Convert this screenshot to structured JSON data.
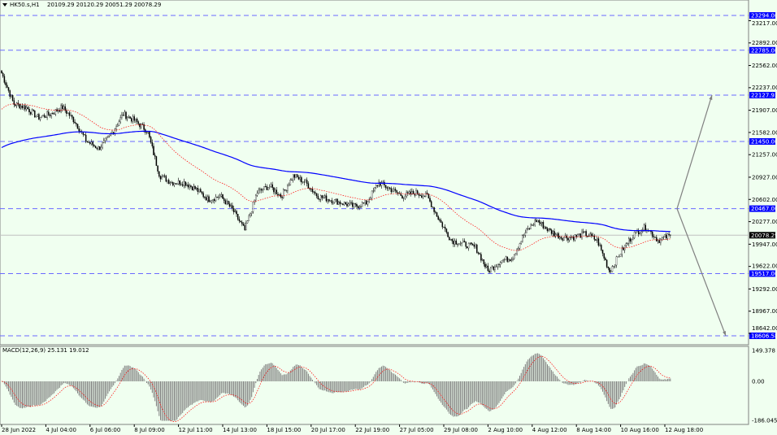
{
  "header": {
    "symbol": "HK50.s,H1",
    "ohlc": "20109.29 20120.29 20051.29 20078.29"
  },
  "macd_label": "MACD(12,26,9) 25.131 19.012",
  "colors": {
    "background": "#f0fff0",
    "level_line": "#6a6aff",
    "ma_blue": "#0000ff",
    "ma_red": "#ff0000",
    "axis_label_bg": "#0000ff",
    "histogram": "#808080"
  },
  "chart_data": {
    "type": "candlestick",
    "price_axis_ticks": [
      "23217.00",
      "22892.00",
      "22562.00",
      "22237.00",
      "21907.00",
      "21582.00",
      "21257.00",
      "20927.00",
      "20602.00",
      "20277.00",
      "19947.00",
      "19622.00",
      "19292.00",
      "18967.00",
      "18642.00"
    ],
    "price_tick_values": [
      23217,
      22892,
      22562,
      22237,
      21907,
      21582,
      21257,
      20927,
      20602,
      20277,
      19947,
      19622,
      19292,
      18967,
      18642
    ],
    "horizontal_levels": [
      {
        "label": "23294.00",
        "value": 23294
      },
      {
        "label": "22785.00",
        "value": 22785
      },
      {
        "label": "22127.93",
        "value": 22127.93
      },
      {
        "label": "21450.00",
        "value": 21450
      },
      {
        "label": "20467.00",
        "value": 20467
      },
      {
        "label": "19517.00",
        "value": 19517
      },
      {
        "label": "18606.58",
        "value": 18606.58
      }
    ],
    "current_price": {
      "label": "20078.29",
      "value": 20078.29
    },
    "time_labels": [
      "28 Jun 2022",
      "4 Jul 04:00",
      "6 Jul 06:00",
      "8 Jul 09:00",
      "12 Jul 11:00",
      "14 Jul 13:00",
      "18 Jul 15:00",
      "20 Jul 17:00",
      "22 Jul 19:00",
      "27 Jul 05:00",
      "29 Jul 08:00",
      "2 Aug 10:00",
      "4 Aug 12:00",
      "8 Aug 14:00",
      "10 Aug 16:00",
      "12 Aug 18:00"
    ],
    "approx_close_path": [
      22450,
      22000,
      21950,
      21800,
      21850,
      21950,
      21750,
      21450,
      21350,
      21550,
      21850,
      21750,
      21600,
      20950,
      20850,
      20850,
      20750,
      20600,
      20650,
      20450,
      20150,
      20700,
      20800,
      20650,
      20950,
      20850,
      20650,
      20600,
      20550,
      20500,
      20550,
      20850,
      20750,
      20650,
      20700,
      20650,
      20300,
      20000,
      19950,
      19900,
      19550,
      19700,
      19750,
      20100,
      20300,
      20150,
      20050,
      20050,
      20100,
      20000,
      19550,
      19850,
      20100,
      20200,
      20000,
      20078.29
    ],
    "projection": {
      "from": 20467,
      "up_target": 22127.93,
      "down_target": 18606.58
    },
    "macd": {
      "params": "12,26,9",
      "axis_ticks": [
        "149.378",
        "0.00",
        "-186.045"
      ],
      "axis_values": [
        149.378,
        0,
        -186.045
      ]
    }
  }
}
